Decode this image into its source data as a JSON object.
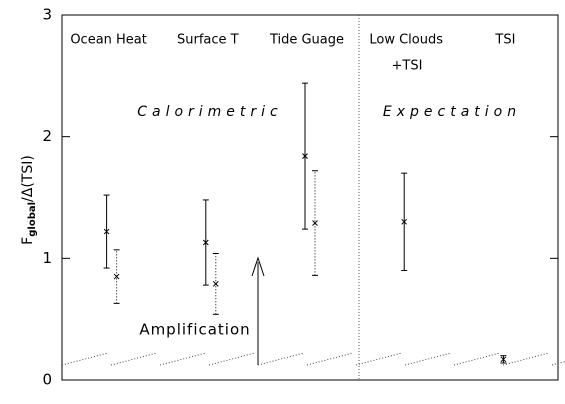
{
  "chart_data": {
    "type": "errorbar",
    "categories": [
      "Ocean Heat",
      "Surface T",
      "Tide Guage",
      "Low Clouds",
      "TSI"
    ],
    "category_note": "+TSI",
    "annotations": [
      "Calorimetric",
      "Expectation",
      "Amplification"
    ],
    "ylabel": [
      "F",
      "global",
      "/Δ(TSI)"
    ],
    "ylim": [
      0,
      3
    ],
    "yticks": [
      0,
      1,
      2,
      3
    ],
    "series": [
      {
        "color": "#000000",
        "dash": "solid",
        "values": [
          1.22,
          1.13,
          1.84,
          1.3,
          0.17
        ],
        "errors": [
          0.3,
          0.35,
          0.6,
          0.4,
          0.03
        ]
      },
      {
        "color": "#000000",
        "dash": "dotted",
        "values": [
          0.85,
          0.79,
          1.29,
          null,
          null
        ],
        "errors": [
          0.22,
          0.25,
          0.43,
          null,
          null
        ]
      }
    ]
  }
}
